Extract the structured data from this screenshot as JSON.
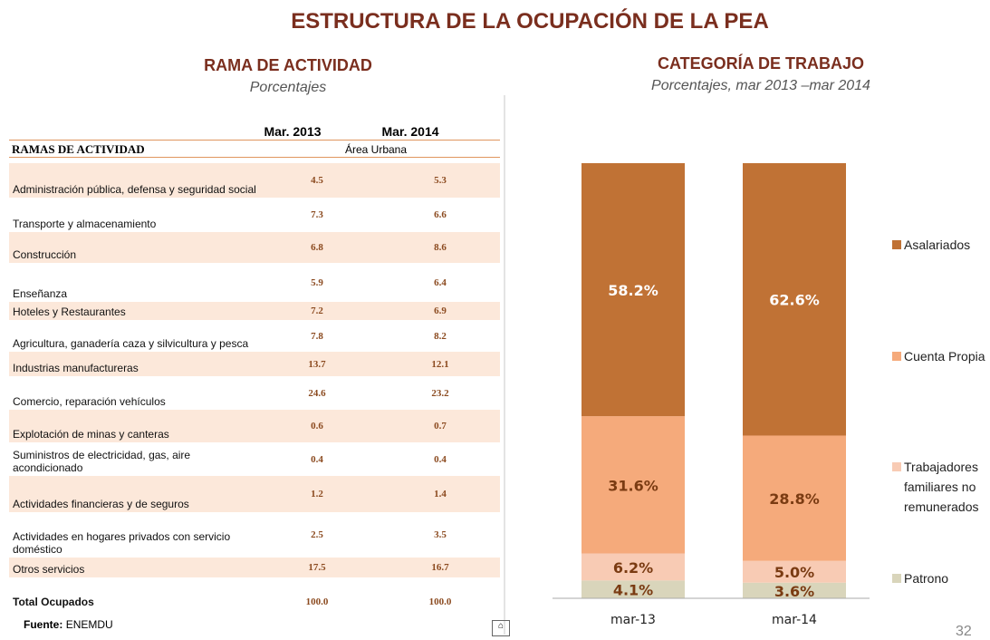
{
  "title": "ESTRUCTURA DE LA OCUPACIÓN DE LA PEA",
  "left": {
    "heading": "RAMA DE ACTIVIDAD",
    "subheading": "Porcentajes"
  },
  "table": {
    "columns": [
      "Mar. 2013",
      "Mar. 2014"
    ],
    "group_label": "RAMAS DE ACTIVIDAD",
    "group_value": "Área Urbana",
    "rows": [
      [
        "Administración pública, defensa y seguridad social",
        "4.5",
        "5.3"
      ],
      [
        "Transporte y almacenamiento",
        "7.3",
        "6.6"
      ],
      [
        "Construcción",
        "6.8",
        "8.6"
      ],
      [
        "Enseñanza",
        "5.9",
        "6.4"
      ],
      [
        "Hoteles y Restaurantes",
        "7.2",
        "6.9"
      ],
      [
        "Agricultura, ganadería caza y silvicultura y pesca",
        "7.8",
        "8.2"
      ],
      [
        "Industrias manufactureras",
        "13.7",
        "12.1"
      ],
      [
        "Comercio, reparación vehículos",
        "24.6",
        "23.2"
      ],
      [
        "Explotación de minas y canteras",
        "0.6",
        "0.7"
      ],
      [
        "Suministros de electricidad, gas, aire acondicionado",
        "0.4",
        "0.4"
      ],
      [
        "Actividades financieras y de seguros",
        "1.2",
        "1.4"
      ],
      [
        "Actividades en hogares privados con servicio doméstico",
        "2.5",
        "3.5"
      ],
      [
        "Otros servicios",
        "17.5",
        "16.7"
      ]
    ],
    "total": [
      "Total Ocupados",
      "100.0",
      "100.0"
    ]
  },
  "source_label": "Fuente:",
  "source": "ENEMDU",
  "page_number": "32",
  "chart_data": {
    "type": "stacked_bar",
    "title": "CATEGORÍA DE TRABAJO",
    "subtitle": "Porcentajes, mar 2013 –mar 2014",
    "categories": [
      "mar-13",
      "mar-14"
    ],
    "series": [
      {
        "name": "Patrono",
        "color": "#d9d5bb",
        "values": [
          4.1,
          3.6
        ],
        "value_labels": [
          "4.1%",
          "3.6%"
        ]
      },
      {
        "name": "Trabajadores familiares no remunerados",
        "color": "#f8cbb4",
        "values": [
          6.2,
          5.0
        ],
        "value_labels": [
          "6.2%",
          "5.0%"
        ]
      },
      {
        "name": "Cuenta Propia",
        "color": "#f5aa7b",
        "values": [
          31.6,
          28.8
        ],
        "value_labels": [
          "31.6%",
          "28.8%"
        ]
      },
      {
        "name": "Asalariados",
        "color": "#c07235",
        "values": [
          58.2,
          62.6
        ],
        "value_labels": [
          "58.2%",
          "62.6%"
        ]
      }
    ],
    "legend": "right"
  }
}
